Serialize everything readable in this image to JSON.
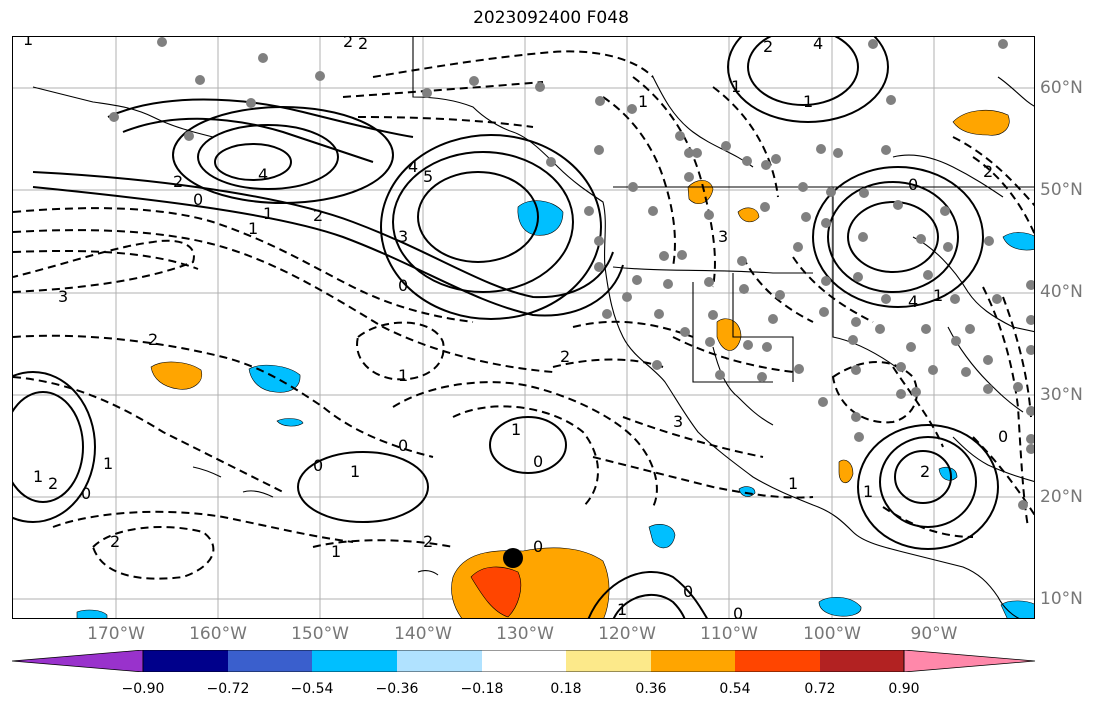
{
  "title": "2023092400 F048",
  "lon_labels": [
    {
      "text": "170°W",
      "lon": -170
    },
    {
      "text": "160°W",
      "lon": -160
    },
    {
      "text": "150°W",
      "lon": -150
    },
    {
      "text": "140°W",
      "lon": -140
    },
    {
      "text": "130°W",
      "lon": -130
    },
    {
      "text": "120°W",
      "lon": -120
    },
    {
      "text": "110°W",
      "lon": -110
    },
    {
      "text": "100°W",
      "lon": -100
    },
    {
      "text": "90°W",
      "lon": -90
    }
  ],
  "lat_labels": [
    {
      "text": "60°N",
      "lat": 60
    },
    {
      "text": "50°N",
      "lat": 50
    },
    {
      "text": "40°N",
      "lat": 40
    },
    {
      "text": "30°N",
      "lat": 30
    },
    {
      "text": "20°N",
      "lat": 20
    },
    {
      "text": "10°N",
      "lat": 10
    }
  ],
  "colorbar": {
    "colors": [
      "#9932cc",
      "#00008b",
      "#3a5fcd",
      "#00bfff",
      "#b0e2ff",
      "#ffffff",
      "#fce98a",
      "#ffa500",
      "#ff4500",
      "#b22222",
      "#ff88aa"
    ],
    "tick_labels": [
      "−0.90",
      "−0.72",
      "−0.54",
      "−0.36",
      "−0.18",
      "0.18",
      "0.36",
      "0.54",
      "0.72",
      "0.90"
    ]
  },
  "contour_labels": [
    "1",
    "2",
    "4",
    "1",
    "2",
    "4",
    "0",
    "2",
    "1",
    "3",
    "4",
    "5",
    "3",
    "0",
    "3",
    "2",
    "1",
    "0",
    "2",
    "0",
    "1",
    "2",
    "1",
    "0",
    "2",
    "0",
    "1",
    "1",
    "0",
    "1",
    "2",
    "2",
    "1",
    "0",
    "3",
    "0",
    "1",
    "2",
    "1",
    "0",
    "4",
    "1",
    "2",
    "1",
    "1",
    "0",
    "1",
    "2"
  ],
  "colors": {
    "solid_contour": "#000000",
    "dashed_contour": "#000000",
    "station_dot": "#808080",
    "storm_marker": "#000000",
    "grid": "#b0b0b0"
  }
}
